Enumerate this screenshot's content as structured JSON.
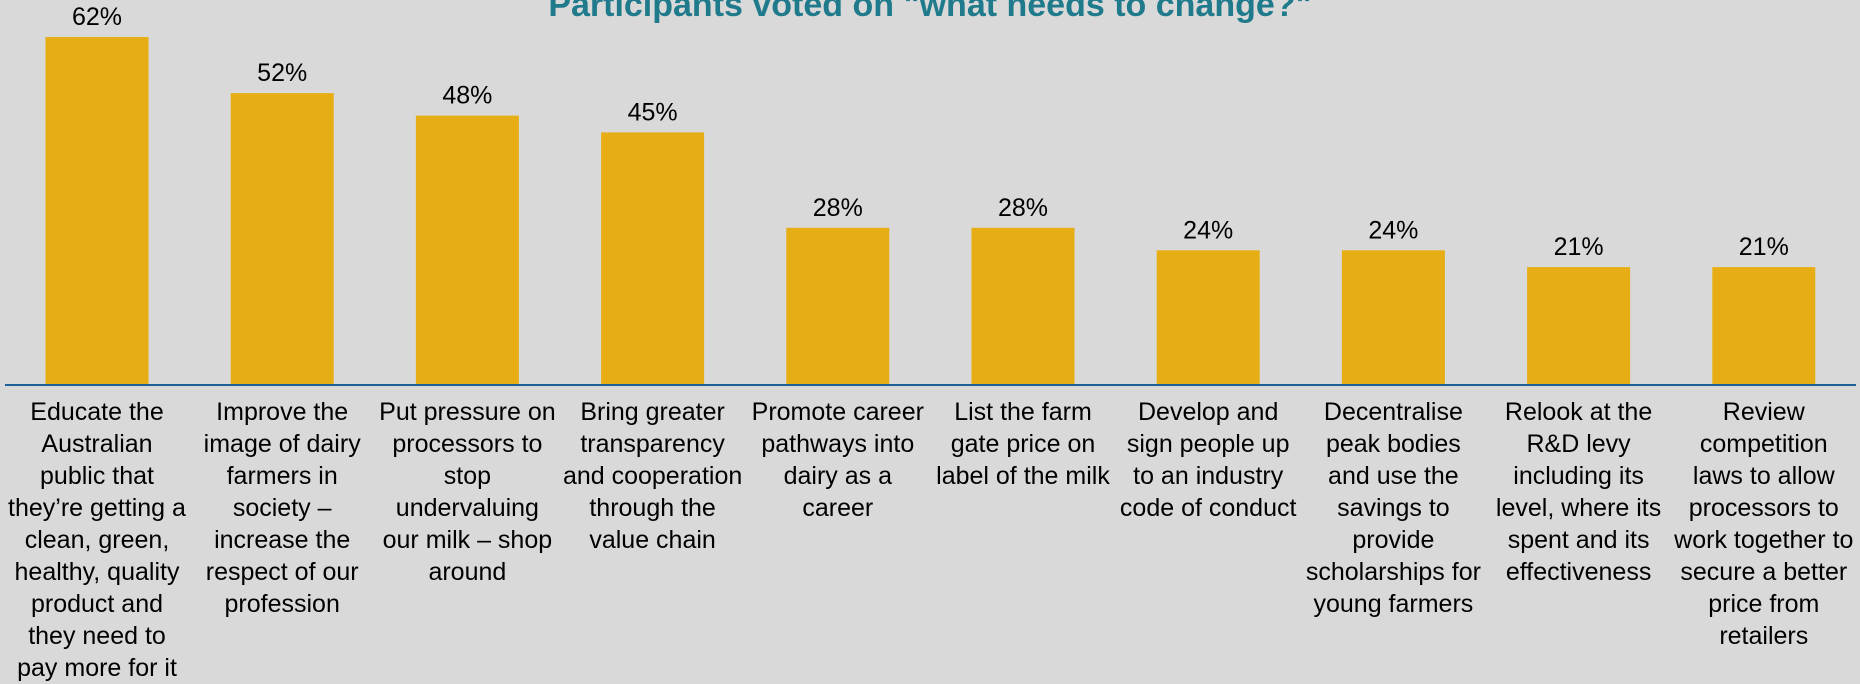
{
  "chart_data": {
    "type": "bar",
    "title": "Participants voted on \"what needs to change?\"",
    "categories": [
      "Educate the Australian public that they’re getting a clean, green, healthy, quality product and they need to pay more for it",
      "Improve the image of dairy farmers in society – increase the respect of our profession",
      "Put pressure on processors to stop undervaluing our milk – shop around",
      "Bring greater transparency and cooperation through the value chain",
      "Promote career pathways into dairy as a career",
      "List the farm gate price on label of the milk",
      "Develop and sign people up to an industry code of conduct",
      "Decentralise peak bodies and use the savings to provide scholarships for young farmers",
      "Relook at the R&D levy including its level, where its spent and its effectiveness",
      "Review competition laws to allow processors to work together to secure a better price from retailers"
    ],
    "values": [
      62,
      52,
      48,
      45,
      28,
      28,
      24,
      24,
      21,
      21
    ],
    "value_labels": [
      "62%",
      "52%",
      "48%",
      "45%",
      "28%",
      "28%",
      "24%",
      "24%",
      "21%",
      "21%"
    ],
    "unit": "%",
    "ylim": [
      0,
      62
    ],
    "grid": false,
    "colors": {
      "bar": "#e6ae14",
      "axis": "#1f5f9a",
      "title": "#1f7a8c",
      "background": "#d9d9d9"
    }
  }
}
